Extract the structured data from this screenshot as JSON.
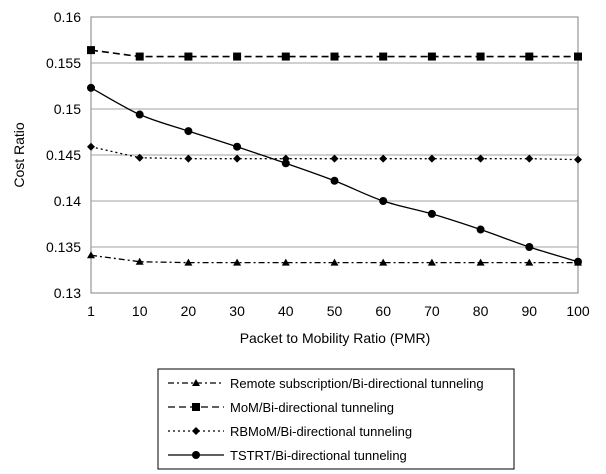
{
  "chart_data": {
    "type": "line",
    "title": "",
    "xlabel": "Packet to Mobility Ratio (PMR)",
    "ylabel": "Cost Ratio",
    "x": [
      "1",
      "10",
      "20",
      "30",
      "40",
      "50",
      "60",
      "70",
      "80",
      "90",
      "100"
    ],
    "ylim": [
      0.13,
      0.16
    ],
    "yticks": [
      "0.13",
      "0.135",
      "0.14",
      "0.145",
      "0.15",
      "0.155",
      "0.16"
    ],
    "grid": "horizontal",
    "legend_position": "bottom",
    "series": [
      {
        "name": "Remote subscription/Bi-directional tunneling",
        "marker": "triangle",
        "line": "dash-dot",
        "values": [
          0.1341,
          0.1334,
          0.1333,
          0.1333,
          0.1333,
          0.1333,
          0.1333,
          0.1333,
          0.1333,
          0.1333,
          0.1333
        ]
      },
      {
        "name": "MoM/Bi-directional tunneling",
        "marker": "square",
        "line": "dashed",
        "values": [
          0.1564,
          0.1557,
          0.1557,
          0.1557,
          0.1557,
          0.1557,
          0.1557,
          0.1557,
          0.1557,
          0.1557,
          0.1557
        ]
      },
      {
        "name": "RBMoM/Bi-directional tunneling",
        "marker": "diamond",
        "line": "dotted",
        "values": [
          0.1459,
          0.1447,
          0.1446,
          0.1446,
          0.1446,
          0.1446,
          0.1446,
          0.1446,
          0.1446,
          0.1446,
          0.1445
        ]
      },
      {
        "name": "TSTRT/Bi-directional tunneling",
        "marker": "circle",
        "line": "solid",
        "values": [
          0.1523,
          0.1494,
          0.1476,
          0.1459,
          0.1441,
          0.1422,
          0.14,
          0.1386,
          0.1369,
          0.135,
          0.1334
        ]
      }
    ]
  }
}
